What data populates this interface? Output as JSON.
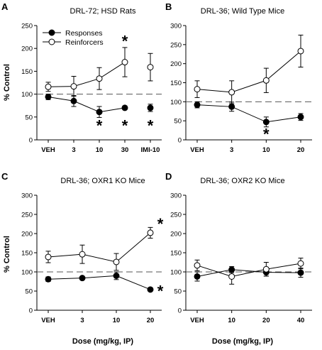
{
  "figure": {
    "xlabel": "Dose (mg/kg, IP)",
    "ylabel": "% Control"
  },
  "chart_data": [
    {
      "type": "line",
      "panel": "A",
      "title": "DRL-72; HSD Rats",
      "ylabel": "% Control",
      "xlabel": "",
      "ylim": [
        0,
        250
      ],
      "yticks": [
        0,
        50,
        100,
        150,
        200,
        250
      ],
      "categories": [
        "VEH",
        "3",
        "10",
        "30",
        "IMI-10"
      ],
      "reference_line": 100,
      "legend": {
        "placement": "top-left",
        "entries": [
          "Responses",
          "Reinforcers"
        ]
      },
      "series": [
        {
          "name": "Responses",
          "marker": "filled",
          "values": [
            94,
            85,
            61,
            70,
            70
          ],
          "errors": [
            6,
            12,
            12,
            4,
            8
          ],
          "connected": [
            0,
            3
          ]
        },
        {
          "name": "Reinforcers",
          "marker": "open",
          "values": [
            116,
            117,
            134,
            170,
            159
          ],
          "errors": [
            10,
            22,
            24,
            32,
            30
          ],
          "connected": [
            0,
            3
          ]
        }
      ],
      "annotations": [
        {
          "text": "*",
          "category": "10",
          "y": 33
        },
        {
          "text": "*",
          "category": "30",
          "y": 33
        },
        {
          "text": "*",
          "category": "IMI-10",
          "y": 33
        },
        {
          "text": "*",
          "category": "30",
          "y": 218
        }
      ]
    },
    {
      "type": "line",
      "panel": "B",
      "title": "DRL-36; Wild Type Mice",
      "ylabel": "",
      "xlabel": "",
      "ylim": [
        0,
        300
      ],
      "yticks": [
        0,
        50,
        100,
        150,
        200,
        250,
        300
      ],
      "categories": [
        "VEH",
        "3",
        "10",
        "20"
      ],
      "reference_line": 100,
      "series": [
        {
          "name": "Responses",
          "marker": "filled",
          "values": [
            92,
            87,
            47,
            60
          ],
          "errors": [
            8,
            12,
            13,
            9
          ],
          "connected": [
            0,
            3
          ]
        },
        {
          "name": "Reinforcers",
          "marker": "open",
          "values": [
            133,
            125,
            156,
            233
          ],
          "errors": [
            22,
            30,
            32,
            42
          ],
          "connected": [
            0,
            3
          ]
        }
      ],
      "annotations": [
        {
          "text": "*",
          "category": "10",
          "y": 18
        }
      ]
    },
    {
      "type": "line",
      "panel": "C",
      "title": "DRL-36; OXR1 KO Mice",
      "ylabel": "% Control",
      "xlabel": "Dose (mg/kg, IP)",
      "ylim": [
        0,
        300
      ],
      "yticks": [
        0,
        50,
        100,
        150,
        200,
        250,
        300
      ],
      "categories": [
        "VEH",
        "3",
        "10",
        "20"
      ],
      "reference_line": 100,
      "series": [
        {
          "name": "Responses",
          "marker": "filled",
          "values": [
            81,
            84,
            90,
            54
          ],
          "errors": [
            6,
            4,
            10,
            4
          ],
          "connected": [
            0,
            3
          ]
        },
        {
          "name": "Reinforcers",
          "marker": "open",
          "values": [
            139,
            146,
            126,
            202
          ],
          "errors": [
            15,
            24,
            22,
            14
          ],
          "connected": [
            0,
            3
          ]
        }
      ],
      "annotations": [
        {
          "text": "*",
          "category": "20",
          "y": 53,
          "side": "right"
        },
        {
          "text": "*",
          "category": "20",
          "y": 228,
          "side": "right"
        }
      ]
    },
    {
      "type": "line",
      "panel": "D",
      "title": "DRL-36; OXR2 KO Mice",
      "ylabel": "",
      "xlabel": "Dose (mg/kg, IP)",
      "ylim": [
        0,
        300
      ],
      "yticks": [
        0,
        50,
        100,
        150,
        200,
        250,
        300
      ],
      "categories": [
        "VEH",
        "10",
        "20",
        "40"
      ],
      "reference_line": 100,
      "series": [
        {
          "name": "Responses",
          "marker": "filled",
          "values": [
            88,
            106,
            99,
            98
          ],
          "errors": [
            12,
            8,
            10,
            12
          ],
          "connected": [
            0,
            3
          ]
        },
        {
          "name": "Reinforcers",
          "marker": "open",
          "values": [
            117,
            88,
            107,
            122
          ],
          "errors": [
            14,
            20,
            18,
            14
          ],
          "connected": [
            0,
            3
          ]
        }
      ],
      "annotations": []
    }
  ]
}
